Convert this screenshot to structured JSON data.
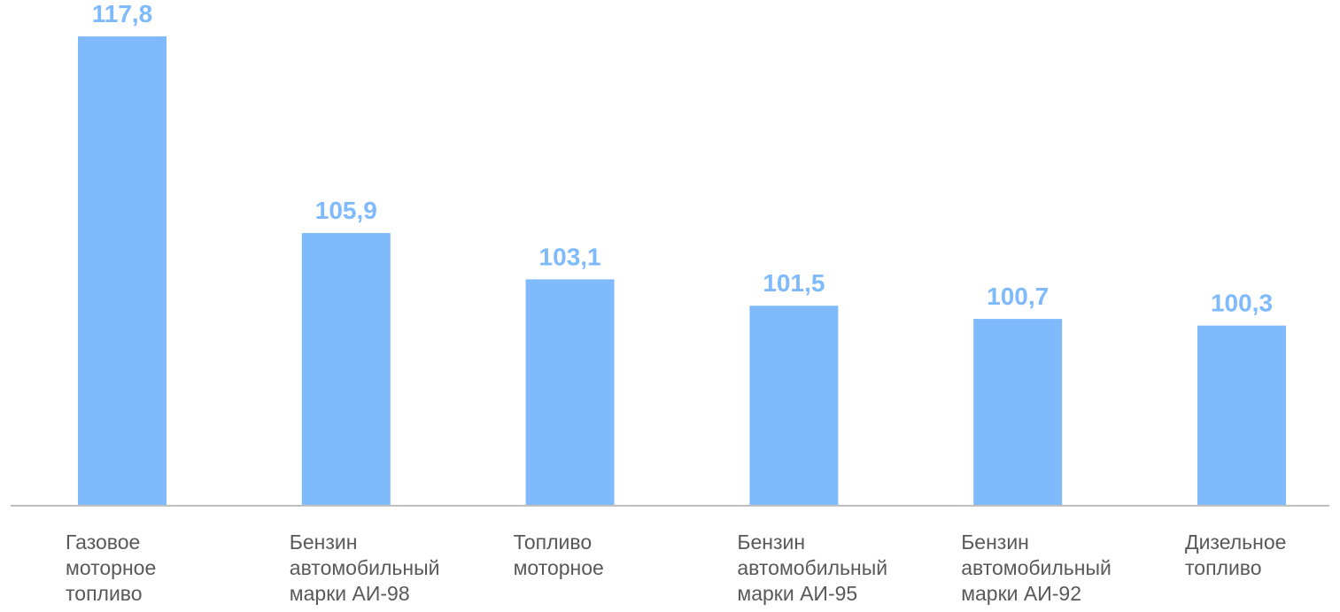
{
  "chart_data": {
    "type": "bar",
    "categories": [
      [
        "Газовое",
        "моторное",
        "топливо"
      ],
      [
        "Бензин",
        "автомобильный",
        "марки АИ-98"
      ],
      [
        "Топливо",
        "моторное"
      ],
      [
        "Бензин",
        "автомобильный",
        "марки АИ-95"
      ],
      [
        "Бензин",
        "автомобильный",
        "марки АИ-92"
      ],
      [
        "Дизельное",
        "топливо"
      ]
    ],
    "values": [
      117.8,
      105.9,
      103.1,
      101.5,
      100.7,
      100.3
    ],
    "value_labels": [
      "117,8",
      "105,9",
      "103,1",
      "101,5",
      "100,7",
      "100,3"
    ],
    "ylim": [
      89.4,
      120
    ],
    "grid": false,
    "colors": {
      "bar": "#7EBAFC",
      "value_label": "#7EBAFC",
      "axis": "#BFBFBF",
      "category_label": "#595959"
    }
  }
}
